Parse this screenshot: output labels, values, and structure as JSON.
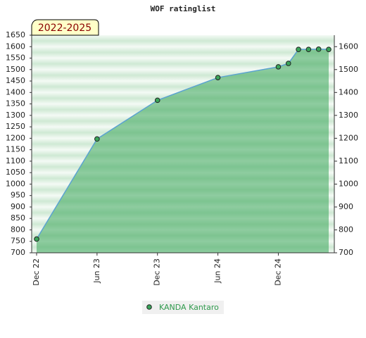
{
  "chart_data": {
    "type": "area-line",
    "title": "WOF ratinglist",
    "badge": "2022-2025",
    "x": [
      "2022-12",
      "2023-06",
      "2023-12",
      "2024-06",
      "2024-12",
      "2025-01",
      "2025-02",
      "2025-03",
      "2025-04",
      "2025-05"
    ],
    "series": [
      {
        "name": "KANDA Kantaro",
        "color": "#5ba3d0",
        "values": [
          760,
          1197,
          1366,
          1465,
          1512,
          1527,
          1588,
          1588,
          1589,
          1588
        ]
      }
    ],
    "xlim": [
      "2022-12",
      "2025-05"
    ],
    "xticks": [
      {
        "value": "2022-12",
        "label": "Dec 22"
      },
      {
        "value": "2023-06",
        "label": "Jun 23"
      },
      {
        "value": "2023-12",
        "label": "Dec 23"
      },
      {
        "value": "2024-06",
        "label": "Jun 24"
      },
      {
        "value": "2024-12",
        "label": "Dec 24"
      }
    ],
    "ylim": [
      700,
      1650
    ],
    "yticks": [
      700,
      750,
      800,
      850,
      900,
      950,
      1000,
      1050,
      1100,
      1150,
      1200,
      1250,
      1300,
      1350,
      1400,
      1450,
      1500,
      1550,
      1600,
      1650
    ],
    "y2lim": [
      700,
      1650
    ],
    "y2ticks": [
      700,
      800,
      900,
      1000,
      1100,
      1200,
      1300,
      1400,
      1500,
      1600
    ]
  }
}
